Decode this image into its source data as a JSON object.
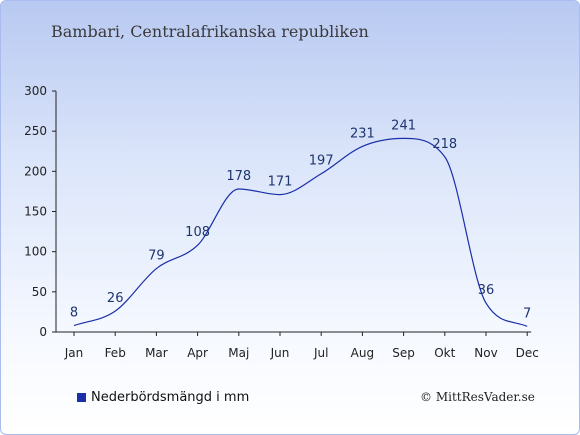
{
  "title": "Bambari, Centralafrikanska republiken",
  "legend": {
    "label": "Nederbördsmängd i mm",
    "color": "#1a2fa8"
  },
  "credit": "© MittResVader.se",
  "chart_data": {
    "type": "line",
    "categories": [
      "Jan",
      "Feb",
      "Mar",
      "Apr",
      "Maj",
      "Jun",
      "Jul",
      "Aug",
      "Sep",
      "Okt",
      "Nov",
      "Dec"
    ],
    "values": [
      8,
      26,
      79,
      108,
      178,
      171,
      197,
      231,
      241,
      218,
      36,
      7
    ],
    "ylim": [
      0,
      300
    ],
    "yticks": [
      0,
      50,
      100,
      150,
      200,
      250,
      300
    ],
    "line_color": "#1a2fa8",
    "grid": false
  }
}
